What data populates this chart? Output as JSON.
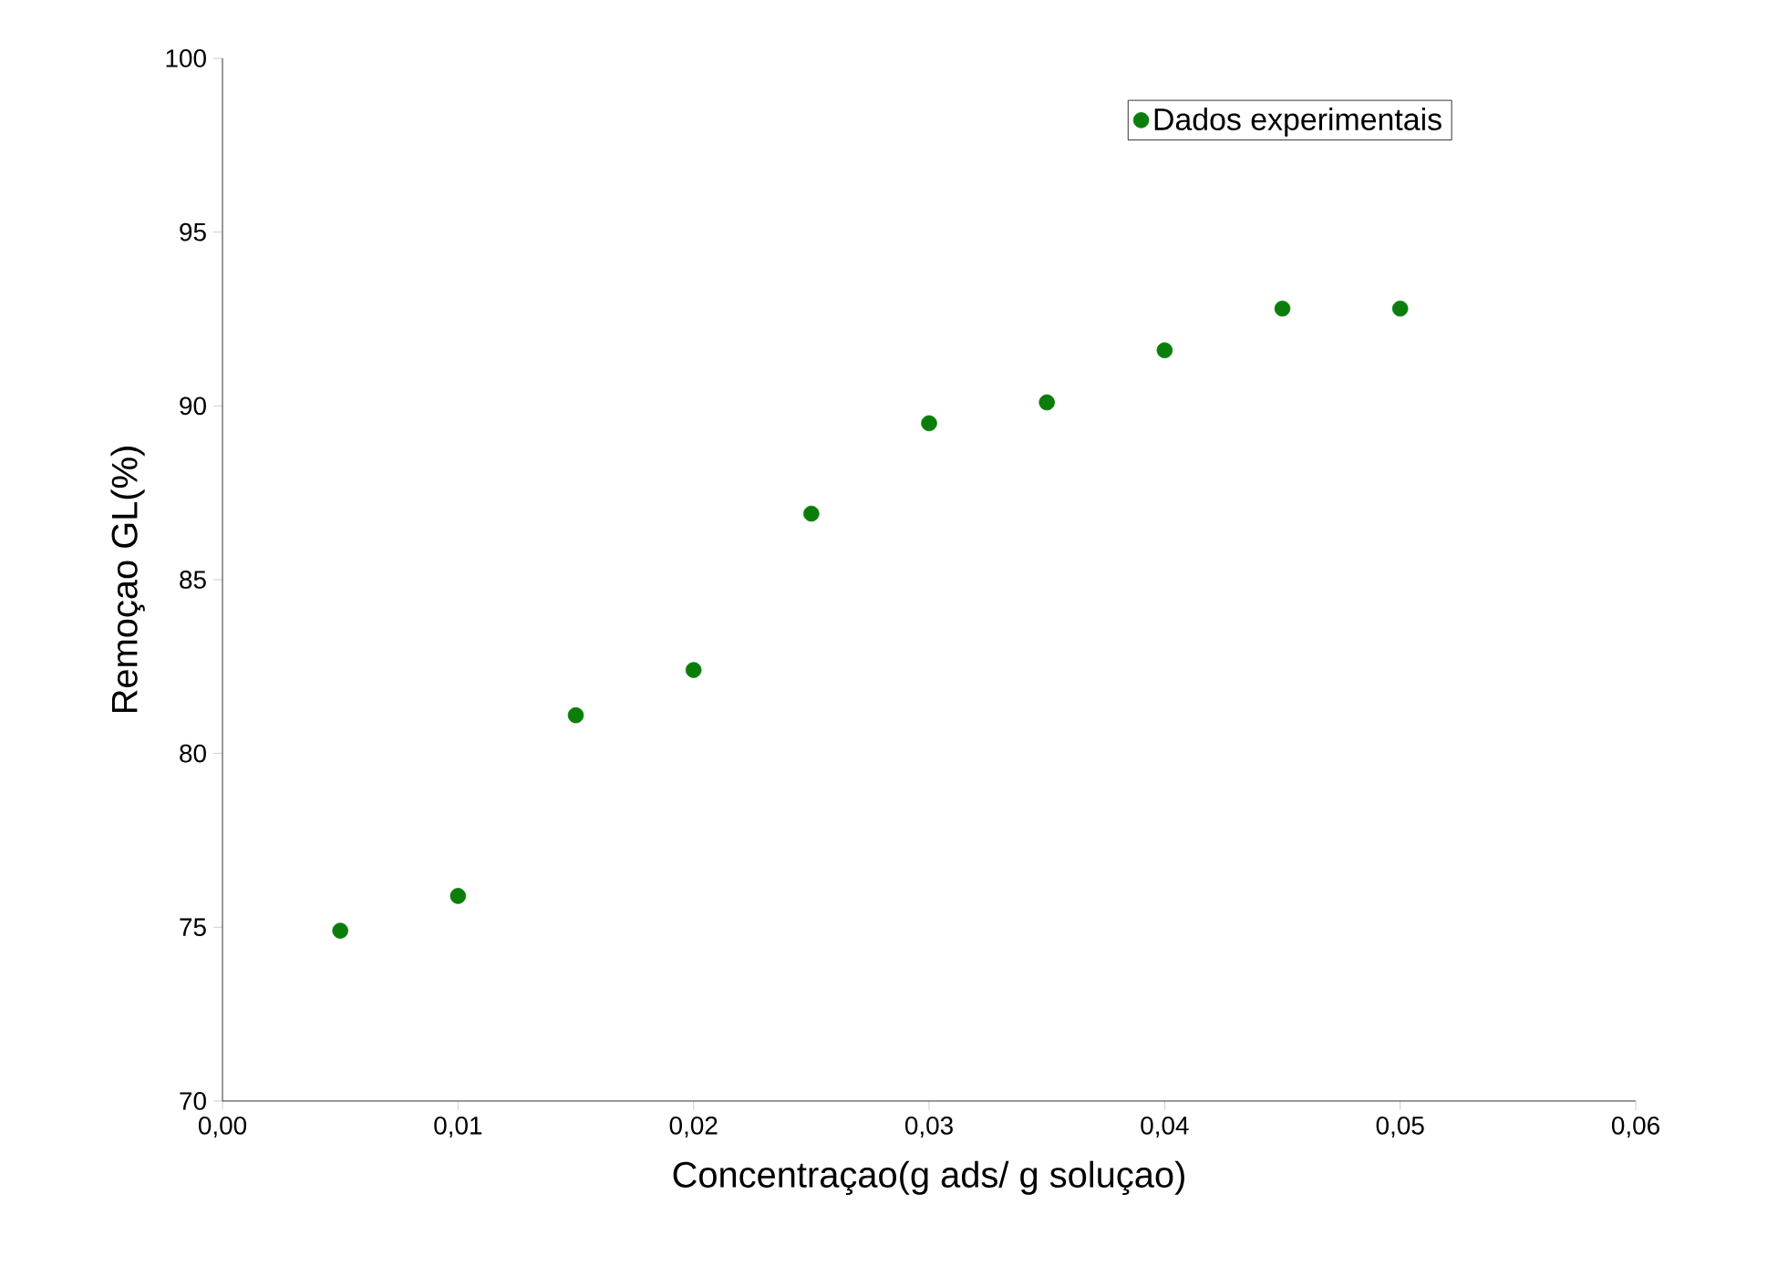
{
  "chart_data": {
    "type": "scatter",
    "xlabel": "Concentraçao(g ads/ g soluçao)",
    "ylabel": "Remoçao GL(%)",
    "x": [
      0.005,
      0.01,
      0.015,
      0.02,
      0.025,
      0.03,
      0.035,
      0.04,
      0.045,
      0.05
    ],
    "series": [
      {
        "name": "Dados experimentais",
        "color": "#0b7d0b",
        "values": [
          74.9,
          75.9,
          81.1,
          82.4,
          86.9,
          89.5,
          90.1,
          91.6,
          92.8,
          92.8
        ]
      }
    ],
    "xlim": [
      0,
      0.06
    ],
    "xticks": [
      {
        "value": 0,
        "label": "0,00"
      },
      {
        "value": 0.01,
        "label": "0,01"
      },
      {
        "value": 0.02,
        "label": "0,02"
      },
      {
        "value": 0.03,
        "label": "0,03"
      },
      {
        "value": 0.04,
        "label": "0,04"
      },
      {
        "value": 0.05,
        "label": "0,05"
      },
      {
        "value": 0.06,
        "label": "0,06"
      }
    ],
    "ylim": [
      70,
      100
    ],
    "yticks": [
      70,
      75,
      80,
      85,
      90,
      95,
      100
    ],
    "legend": "top right",
    "marker": "circle",
    "grid": false
  }
}
